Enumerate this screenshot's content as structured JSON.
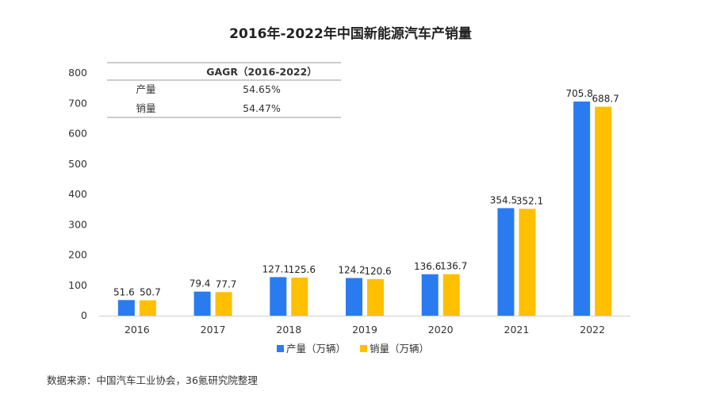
{
  "chart_data": {
    "type": "bar",
    "title": "2016年-2022年中国新能源汽车产销量",
    "categories": [
      "2016",
      "2017",
      "2018",
      "2019",
      "2020",
      "2021",
      "2022"
    ],
    "series": [
      {
        "name": "产量（万辆）",
        "color": "#2b7bf0",
        "values": [
          51.6,
          79.4,
          127.1,
          124.2,
          136.6,
          354.5,
          705.8
        ]
      },
      {
        "name": "销量（万辆）",
        "color": "#ffc000",
        "values": [
          50.7,
          77.7,
          125.6,
          120.6,
          136.7,
          352.1,
          688.7
        ]
      }
    ],
    "y_ticks": [
      "0",
      "100",
      "200",
      "300",
      "400",
      "500",
      "600",
      "700",
      "800"
    ],
    "ylim": [
      0,
      800
    ],
    "legend_position": "bottom-center",
    "grid": false
  },
  "cagr_table": {
    "header": "GAGR（2016-2022）",
    "rows": [
      {
        "label": "产量",
        "value": "54.65%"
      },
      {
        "label": "销量",
        "value": "54.47%"
      }
    ]
  },
  "source_note": "数据来源：中国汽车工业协会，36氪研究院整理"
}
